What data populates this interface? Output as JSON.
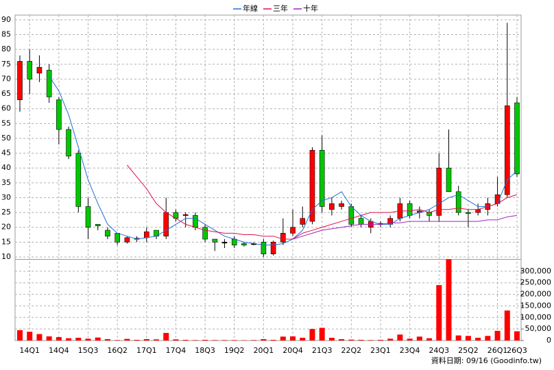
{
  "chart_data": {
    "type": "candlestick",
    "grid": true,
    "legend": "top",
    "up_color": "#ff0000",
    "down_color": "#00c800",
    "categories": [
      null,
      "14Q1",
      null,
      null,
      "14Q4",
      null,
      null,
      "15Q3",
      null,
      null,
      "16Q2",
      null,
      null,
      "17Q1",
      null,
      null,
      "17Q4",
      null,
      null,
      "18Q3",
      null,
      null,
      "19Q2",
      null,
      null,
      "20Q1",
      null,
      null,
      "20Q4",
      null,
      null,
      "21Q3",
      null,
      null,
      "22Q2",
      null,
      null,
      "23Q1",
      null,
      null,
      "23Q4",
      null,
      null,
      "24Q3",
      null,
      null,
      "25Q2",
      null,
      null,
      "26Q1",
      null,
      "26Q3"
    ],
    "open": [
      63,
      76,
      72,
      73,
      63,
      53,
      45,
      27,
      21,
      19,
      18,
      15,
      16,
      16.5,
      19,
      17,
      25,
      24,
      24,
      20,
      16,
      15,
      16,
      14.5,
      14.5,
      15,
      11,
      15,
      18,
      21,
      22,
      46,
      26,
      27,
      27,
      23,
      20,
      21,
      21,
      23,
      28,
      25,
      25,
      24,
      40,
      32,
      25,
      25,
      26,
      28,
      31,
      62
    ],
    "high": [
      78,
      80,
      78,
      75,
      64,
      54,
      46,
      30,
      21,
      20,
      18,
      17,
      17,
      20,
      19,
      30,
      26,
      25,
      25,
      21,
      16,
      16,
      17,
      15,
      15,
      16,
      15.5,
      23,
      26,
      27,
      47,
      51,
      30,
      29,
      28,
      24,
      23,
      22,
      24,
      30,
      29,
      27,
      26,
      45,
      53,
      34,
      26,
      28,
      30,
      37,
      89,
      64
    ],
    "low": [
      59,
      65,
      69,
      62,
      48,
      43,
      25,
      16,
      19,
      16,
      14,
      14.5,
      15,
      15,
      16,
      16,
      22,
      20,
      19,
      15,
      12,
      13,
      13,
      13.5,
      14,
      10,
      10.5,
      14,
      17,
      20,
      21,
      25,
      24,
      26,
      20,
      20,
      18,
      20,
      20,
      22,
      23,
      23,
      22,
      22,
      32,
      24,
      20,
      24,
      24,
      27,
      30,
      37
    ],
    "close": [
      76,
      70,
      74,
      64,
      53,
      44,
      27,
      20,
      20.5,
      17,
      15,
      16.5,
      16.3,
      18.5,
      17,
      25,
      23,
      24.3,
      20,
      16,
      15,
      15,
      14,
      14,
      14.5,
      11,
      15,
      18,
      20,
      23,
      46,
      27,
      28,
      28,
      21,
      21,
      22,
      21.3,
      23,
      28,
      24,
      25.5,
      24,
      40,
      32,
      25,
      24.8,
      26,
      28,
      31,
      61,
      38
    ],
    "series": [
      {
        "name": "年線",
        "color": "#1f6fd6",
        "values": [
          null,
          null,
          null,
          71,
          66,
          58,
          47,
          36,
          28,
          21,
          18,
          17,
          16,
          16.5,
          17,
          19,
          21,
          23,
          23,
          21,
          19,
          17,
          16,
          15,
          14.5,
          14,
          14,
          14.5,
          16,
          19,
          26,
          29,
          30,
          32,
          27,
          24,
          22,
          21,
          21,
          23,
          24,
          25,
          26,
          28,
          30,
          31,
          29,
          27,
          27,
          28,
          36,
          39
        ]
      },
      {
        "name": "三年",
        "color": "#e0104a",
        "values": [
          null,
          null,
          null,
          null,
          null,
          null,
          null,
          null,
          null,
          null,
          null,
          41,
          37,
          33,
          28,
          25,
          23,
          21,
          20,
          19,
          18.5,
          18,
          18,
          17.5,
          17.5,
          17,
          17,
          16,
          16,
          18,
          19,
          20,
          21,
          22,
          23,
          24,
          25,
          25,
          25,
          25.5,
          25.5,
          26,
          25,
          26,
          26,
          26.5,
          26,
          26,
          27,
          28,
          30,
          31
        ]
      },
      {
        "name": "十年",
        "color": "#a020c0",
        "values": [
          null,
          null,
          null,
          null,
          null,
          null,
          null,
          null,
          null,
          null,
          null,
          null,
          null,
          null,
          null,
          null,
          null,
          null,
          null,
          null,
          null,
          null,
          null,
          null,
          null,
          null,
          null,
          null,
          16,
          17,
          18,
          19,
          19.5,
          20,
          20.5,
          21,
          21,
          21,
          21.5,
          21.5,
          22,
          22,
          22,
          22,
          22,
          22,
          22,
          22,
          22.5,
          22.5,
          23.5,
          24
        ]
      }
    ],
    "ylim": [
      9.3,
      91.6
    ],
    "yticks": [
      10,
      15,
      20,
      25,
      30,
      35,
      40,
      45,
      50,
      55,
      60,
      65,
      70,
      75,
      80,
      85,
      90
    ],
    "volume": {
      "color": "#ff0000",
      "values": [
        45000,
        38000,
        28000,
        18000,
        15000,
        10000,
        12000,
        8000,
        13000,
        6000,
        2000,
        7000,
        3000,
        6000,
        5000,
        33000,
        5000,
        3000,
        2000,
        3000,
        2000,
        2000,
        2000,
        1500,
        2000,
        6000,
        3000,
        17000,
        18000,
        12000,
        50000,
        55000,
        12000,
        6000,
        4000,
        3000,
        2000,
        3000,
        8000,
        26000,
        8000,
        17000,
        10000,
        240000,
        352000,
        22000,
        20000,
        12000,
        20000,
        42000,
        130000,
        40000
      ]
    },
    "y2lim": [
      0,
      350000
    ],
    "y2ticks": [
      0,
      {
        "value": 50000,
        "label": "50,000"
      },
      {
        "value": 100000,
        "label": "100,000"
      },
      {
        "value": 150000,
        "label": "150,000"
      },
      {
        "value": 200000,
        "label": "200,000"
      },
      {
        "value": 250000,
        "label": "250,000"
      },
      {
        "value": 300000,
        "label": "300,000"
      }
    ],
    "source": "資料日期: 09/16  (Goodinfo.tw)"
  }
}
